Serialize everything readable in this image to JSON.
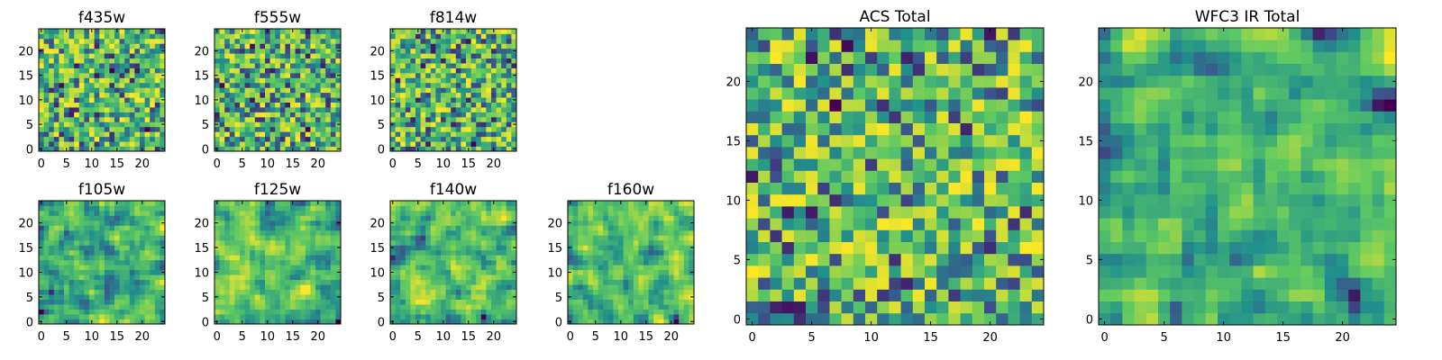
{
  "colormap": [
    "#440154",
    "#3b528b",
    "#21918c",
    "#5ec962",
    "#fde725"
  ],
  "chart_data": [
    {
      "type": "heatmap",
      "title": "f435w",
      "grid": [
        25,
        25
      ],
      "ticks": [
        0,
        5,
        10,
        15,
        20
      ],
      "xlim": [
        0,
        24
      ],
      "ylim": [
        0,
        24
      ],
      "seed": 11,
      "smooth": 0,
      "min_value": 0.0,
      "max_value": 1.0
    },
    {
      "type": "heatmap",
      "title": "f555w",
      "grid": [
        25,
        25
      ],
      "ticks": [
        0,
        5,
        10,
        15,
        20
      ],
      "xlim": [
        0,
        24
      ],
      "ylim": [
        0,
        24
      ],
      "seed": 23,
      "smooth": 0,
      "min_value": 0.0,
      "max_value": 1.0
    },
    {
      "type": "heatmap",
      "title": "f814w",
      "grid": [
        25,
        25
      ],
      "ticks": [
        0,
        5,
        10,
        15,
        20
      ],
      "xlim": [
        0,
        24
      ],
      "ylim": [
        0,
        24
      ],
      "seed": 37,
      "smooth": 0,
      "min_value": 0.0,
      "max_value": 1.0
    },
    {
      "type": "heatmap",
      "title": "f105w",
      "grid": [
        25,
        25
      ],
      "ticks": [
        0,
        5,
        10,
        15,
        20
      ],
      "xlim": [
        0,
        24
      ],
      "ylim": [
        0,
        24
      ],
      "seed": 41,
      "smooth": 1,
      "min_value": 0.0,
      "max_value": 1.0
    },
    {
      "type": "heatmap",
      "title": "f125w",
      "grid": [
        25,
        25
      ],
      "ticks": [
        0,
        5,
        10,
        15,
        20
      ],
      "xlim": [
        0,
        24
      ],
      "ylim": [
        0,
        24
      ],
      "seed": 53,
      "smooth": 1,
      "min_value": 0.0,
      "max_value": 1.0
    },
    {
      "type": "heatmap",
      "title": "f140w",
      "grid": [
        25,
        25
      ],
      "ticks": [
        0,
        5,
        10,
        15,
        20
      ],
      "xlim": [
        0,
        24
      ],
      "ylim": [
        0,
        24
      ],
      "seed": 67,
      "smooth": 1,
      "min_value": 0.0,
      "max_value": 1.0
    },
    {
      "type": "heatmap",
      "title": "f160w",
      "grid": [
        25,
        25
      ],
      "ticks": [
        0,
        5,
        10,
        15,
        20
      ],
      "xlim": [
        0,
        24
      ],
      "ylim": [
        0,
        24
      ],
      "seed": 79,
      "smooth": 1,
      "min_value": 0.0,
      "max_value": 1.0
    },
    {
      "type": "heatmap",
      "title": "ACS Total",
      "grid": [
        25,
        25
      ],
      "ticks": [
        0,
        5,
        10,
        15,
        20
      ],
      "xlim": [
        0,
        24
      ],
      "ylim": [
        0,
        24
      ],
      "seed": 97,
      "smooth": 0,
      "min_value": 0.0,
      "max_value": 1.0
    },
    {
      "type": "heatmap",
      "title": "WFC3 IR Total",
      "grid": [
        25,
        25
      ],
      "ticks": [
        0,
        5,
        10,
        15,
        20
      ],
      "xlim": [
        0,
        24
      ],
      "ylim": [
        0,
        24
      ],
      "seed": 113,
      "smooth": 1,
      "min_value": 0.0,
      "max_value": 1.0
    }
  ]
}
